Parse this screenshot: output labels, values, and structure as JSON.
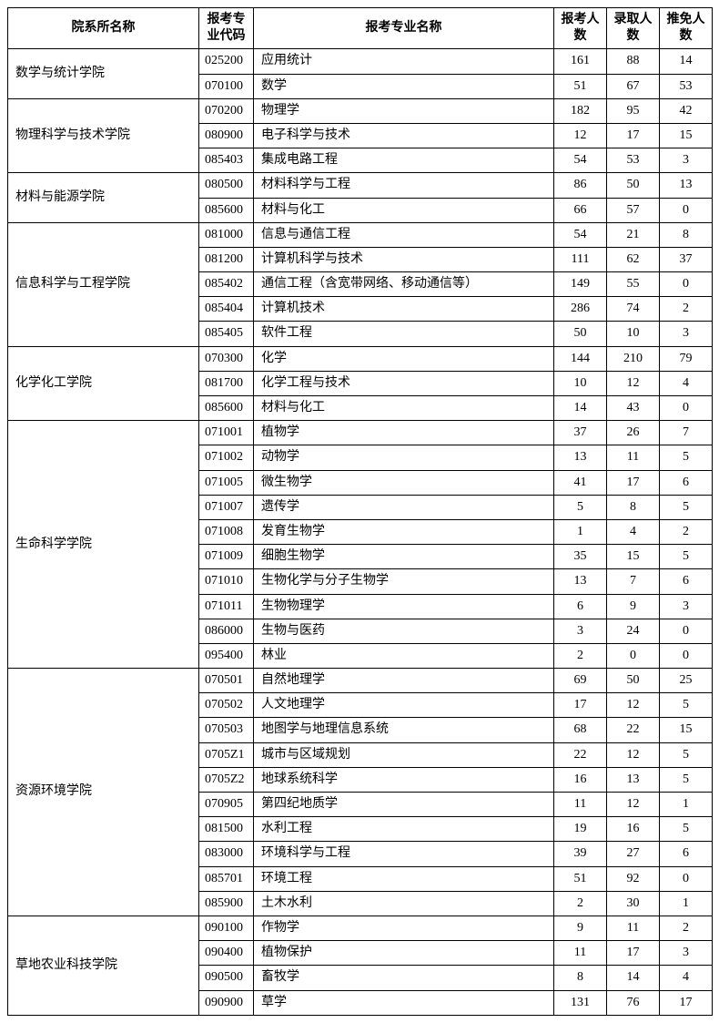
{
  "headers": {
    "dept": "院系所名称",
    "code": "报考专业代码",
    "name": "报考专业名称",
    "apply": "报考人数",
    "admit": "录取人数",
    "exempt": "推免人数"
  },
  "departments": [
    {
      "dept": "数学与统计学院",
      "rows": [
        {
          "code": "025200",
          "name": "应用统计",
          "apply": 161,
          "admit": 88,
          "exempt": 14
        },
        {
          "code": "070100",
          "name": "数学",
          "apply": 51,
          "admit": 67,
          "exempt": 53
        }
      ]
    },
    {
      "dept": "物理科学与技术学院",
      "rows": [
        {
          "code": "070200",
          "name": "物理学",
          "apply": 182,
          "admit": 95,
          "exempt": 42
        },
        {
          "code": "080900",
          "name": "电子科学与技术",
          "apply": 12,
          "admit": 17,
          "exempt": 15
        },
        {
          "code": "085403",
          "name": "集成电路工程",
          "apply": 54,
          "admit": 53,
          "exempt": 3
        }
      ]
    },
    {
      "dept": "材料与能源学院",
      "rows": [
        {
          "code": "080500",
          "name": "材料科学与工程",
          "apply": 86,
          "admit": 50,
          "exempt": 13
        },
        {
          "code": "085600",
          "name": "材料与化工",
          "apply": 66,
          "admit": 57,
          "exempt": 0
        }
      ]
    },
    {
      "dept": "信息科学与工程学院",
      "rows": [
        {
          "code": "081000",
          "name": "信息与通信工程",
          "apply": 54,
          "admit": 21,
          "exempt": 8
        },
        {
          "code": "081200",
          "name": "计算机科学与技术",
          "apply": 111,
          "admit": 62,
          "exempt": 37
        },
        {
          "code": "085402",
          "name": "通信工程（含宽带网络、移动通信等）",
          "apply": 149,
          "admit": 55,
          "exempt": 0
        },
        {
          "code": "085404",
          "name": "计算机技术",
          "apply": 286,
          "admit": 74,
          "exempt": 2
        },
        {
          "code": "085405",
          "name": "软件工程",
          "apply": 50,
          "admit": 10,
          "exempt": 3
        }
      ]
    },
    {
      "dept": "化学化工学院",
      "rows": [
        {
          "code": "070300",
          "name": "化学",
          "apply": 144,
          "admit": 210,
          "exempt": 79
        },
        {
          "code": "081700",
          "name": "化学工程与技术",
          "apply": 10,
          "admit": 12,
          "exempt": 4
        },
        {
          "code": "085600",
          "name": "材料与化工",
          "apply": 14,
          "admit": 43,
          "exempt": 0
        }
      ]
    },
    {
      "dept": "生命科学学院",
      "rows": [
        {
          "code": "071001",
          "name": "植物学",
          "apply": 37,
          "admit": 26,
          "exempt": 7
        },
        {
          "code": "071002",
          "name": "动物学",
          "apply": 13,
          "admit": 11,
          "exempt": 5
        },
        {
          "code": "071005",
          "name": "微生物学",
          "apply": 41,
          "admit": 17,
          "exempt": 6
        },
        {
          "code": "071007",
          "name": "遗传学",
          "apply": 5,
          "admit": 8,
          "exempt": 5
        },
        {
          "code": "071008",
          "name": "发育生物学",
          "apply": 1,
          "admit": 4,
          "exempt": 2
        },
        {
          "code": "071009",
          "name": "细胞生物学",
          "apply": 35,
          "admit": 15,
          "exempt": 5
        },
        {
          "code": "071010",
          "name": "生物化学与分子生物学",
          "apply": 13,
          "admit": 7,
          "exempt": 6
        },
        {
          "code": "071011",
          "name": "生物物理学",
          "apply": 6,
          "admit": 9,
          "exempt": 3
        },
        {
          "code": "086000",
          "name": "生物与医药",
          "apply": 3,
          "admit": 24,
          "exempt": 0
        },
        {
          "code": "095400",
          "name": "林业",
          "apply": 2,
          "admit": 0,
          "exempt": 0
        }
      ]
    },
    {
      "dept": "资源环境学院",
      "rows": [
        {
          "code": "070501",
          "name": "自然地理学",
          "apply": 69,
          "admit": 50,
          "exempt": 25
        },
        {
          "code": "070502",
          "name": "人文地理学",
          "apply": 17,
          "admit": 12,
          "exempt": 5
        },
        {
          "code": "070503",
          "name": "地图学与地理信息系统",
          "apply": 68,
          "admit": 22,
          "exempt": 15
        },
        {
          "code": "0705Z1",
          "name": "城市与区域规划",
          "apply": 22,
          "admit": 12,
          "exempt": 5
        },
        {
          "code": "0705Z2",
          "name": "地球系统科学",
          "apply": 16,
          "admit": 13,
          "exempt": 5
        },
        {
          "code": "070905",
          "name": "第四纪地质学",
          "apply": 11,
          "admit": 12,
          "exempt": 1
        },
        {
          "code": "081500",
          "name": "水利工程",
          "apply": 19,
          "admit": 16,
          "exempt": 5
        },
        {
          "code": "083000",
          "name": "环境科学与工程",
          "apply": 39,
          "admit": 27,
          "exempt": 6
        },
        {
          "code": "085701",
          "name": "环境工程",
          "apply": 51,
          "admit": 92,
          "exempt": 0
        },
        {
          "code": "085900",
          "name": "土木水利",
          "apply": 2,
          "admit": 30,
          "exempt": 1
        }
      ]
    },
    {
      "dept": "草地农业科技学院",
      "rows": [
        {
          "code": "090100",
          "name": "作物学",
          "apply": 9,
          "admit": 11,
          "exempt": 2
        },
        {
          "code": "090400",
          "name": "植物保护",
          "apply": 11,
          "admit": 17,
          "exempt": 3
        },
        {
          "code": "090500",
          "name": "畜牧学",
          "apply": 8,
          "admit": 14,
          "exempt": 4
        },
        {
          "code": "090900",
          "name": "草学",
          "apply": 131,
          "admit": 76,
          "exempt": 17
        }
      ]
    }
  ]
}
